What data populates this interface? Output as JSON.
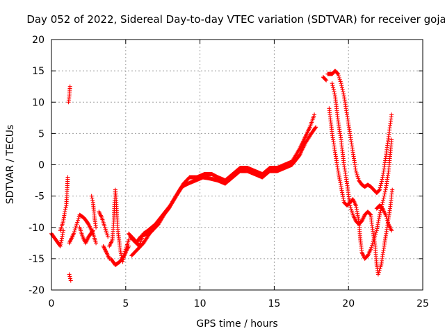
{
  "chart_data": {
    "type": "scatter",
    "title": "Day 052 of 2022, Sidereal Day-to-day VTEC variation (SDTVAR) for receiver goja",
    "xlabel": "GPS time / hours",
    "ylabel": "SDTVAR / TECUs",
    "xlim": [
      0,
      25
    ],
    "ylim": [
      -20,
      20
    ],
    "xticks": [
      "0",
      "5",
      "10",
      "15",
      "20",
      "25"
    ],
    "yticks": [
      "20",
      "15",
      "10",
      "5",
      "0",
      "-5",
      "-10",
      "-15",
      "-20"
    ],
    "grid": true,
    "marker": "+",
    "color": "#ff0000",
    "series": [
      {
        "name": "SDTVAR",
        "tracks": [
          [
            [
              0.0,
              -11
            ],
            [
              0.3,
              -12
            ],
            [
              0.6,
              -13
            ],
            [
              0.8,
              -10.5
            ]
          ],
          [
            [
              0.6,
              -10.5
            ],
            [
              0.8,
              -9
            ],
            [
              0.9,
              -7.5
            ],
            [
              1.0,
              -6.5
            ],
            [
              1.05,
              -4
            ],
            [
              1.1,
              -2
            ]
          ],
          [
            [
              1.15,
              10
            ],
            [
              1.2,
              11
            ],
            [
              1.25,
              12.5
            ]
          ],
          [
            [
              1.2,
              -17.5
            ],
            [
              1.3,
              -18.5
            ]
          ],
          [
            [
              1.2,
              -12.5
            ],
            [
              1.5,
              -11
            ],
            [
              1.7,
              -9.5
            ],
            [
              1.9,
              -8
            ],
            [
              2.2,
              -8.5
            ],
            [
              2.5,
              -9.5
            ],
            [
              2.8,
              -11
            ],
            [
              3.0,
              -12.5
            ]
          ],
          [
            [
              1.9,
              -10
            ],
            [
              2.1,
              -11.5
            ],
            [
              2.3,
              -12.5
            ],
            [
              2.5,
              -11.5
            ],
            [
              2.8,
              -10.5
            ]
          ],
          [
            [
              2.7,
              -5
            ],
            [
              2.8,
              -6
            ],
            [
              2.9,
              -8.5
            ],
            [
              3.0,
              -10
            ]
          ],
          [
            [
              3.2,
              -7.5
            ],
            [
              3.4,
              -8.5
            ],
            [
              3.6,
              -10
            ],
            [
              3.8,
              -11.5
            ]
          ],
          [
            [
              3.5,
              -13
            ],
            [
              3.7,
              -14
            ],
            [
              3.9,
              -15
            ]
          ],
          [
            [
              3.9,
              -13
            ],
            [
              4.1,
              -12
            ],
            [
              4.2,
              -9
            ],
            [
              4.25,
              -6
            ],
            [
              4.3,
              -4
            ],
            [
              4.35,
              -5
            ],
            [
              4.4,
              -8
            ],
            [
              4.5,
              -11
            ],
            [
              4.6,
              -13
            ],
            [
              4.7,
              -14.5
            ],
            [
              4.8,
              -15.5
            ],
            [
              4.9,
              -14.5
            ],
            [
              5.0,
              -13.5
            ],
            [
              5.2,
              -12
            ]
          ],
          [
            [
              4.0,
              -15
            ],
            [
              4.3,
              -16
            ],
            [
              4.6,
              -15.5
            ],
            [
              4.9,
              -14.5
            ],
            [
              5.2,
              -13
            ]
          ],
          [
            [
              5.2,
              -11
            ],
            [
              5.6,
              -12
            ],
            [
              5.9,
              -13
            ],
            [
              6.2,
              -11
            ],
            [
              6.5,
              -10.5
            ],
            [
              7.0,
              -9.5
            ],
            [
              7.5,
              -8
            ],
            [
              8.0,
              -6.5
            ],
            [
              8.5,
              -4.5
            ],
            [
              8.9,
              -3
            ],
            [
              9.3,
              -2
            ],
            [
              9.8,
              -2
            ],
            [
              10.3,
              -1.5
            ],
            [
              10.8,
              -1.5
            ],
            [
              11.2,
              -2
            ],
            [
              11.7,
              -2.5
            ],
            [
              12.2,
              -1.5
            ],
            [
              12.7,
              -0.5
            ],
            [
              13.2,
              -0.5
            ],
            [
              13.7,
              -1
            ],
            [
              14.2,
              -1.5
            ],
            [
              14.7,
              -0.5
            ],
            [
              15.2,
              -0.5
            ],
            [
              15.7,
              0
            ],
            [
              16.2,
              0.5
            ],
            [
              16.7,
              2.5
            ],
            [
              17.1,
              4.5
            ],
            [
              17.4,
              6
            ],
            [
              17.7,
              8
            ]
          ],
          [
            [
              5.3,
              -11.5
            ],
            [
              5.7,
              -12.5
            ],
            [
              6.0,
              -11.5
            ],
            [
              6.4,
              -11
            ],
            [
              6.9,
              -10
            ],
            [
              7.4,
              -8.5
            ],
            [
              7.9,
              -7
            ],
            [
              8.4,
              -5
            ],
            [
              8.8,
              -3.5
            ],
            [
              9.2,
              -3
            ],
            [
              9.7,
              -2.5
            ],
            [
              10.2,
              -2
            ],
            [
              10.7,
              -2.2
            ],
            [
              11.2,
              -2.5
            ],
            [
              11.7,
              -3
            ],
            [
              12.2,
              -2
            ],
            [
              12.7,
              -1
            ],
            [
              13.2,
              -1
            ],
            [
              13.7,
              -1.5
            ],
            [
              14.2,
              -2
            ],
            [
              14.7,
              -1
            ],
            [
              15.2,
              -1
            ],
            [
              15.7,
              -0.5
            ],
            [
              16.2,
              0
            ],
            [
              16.7,
              1.5
            ],
            [
              17.1,
              3.5
            ],
            [
              17.5,
              5
            ],
            [
              17.8,
              6
            ]
          ],
          [
            [
              5.4,
              -14.5
            ],
            [
              5.8,
              -13.5
            ],
            [
              6.2,
              -12.5
            ],
            [
              6.6,
              -11
            ],
            [
              7.2,
              -9.5
            ],
            [
              7.7,
              -7.5
            ]
          ],
          [
            [
              18.3,
              14
            ],
            [
              18.5,
              13.5
            ]
          ],
          [
            [
              18.7,
              9
            ],
            [
              18.9,
              5
            ],
            [
              19.1,
              2
            ],
            [
              19.3,
              -1
            ],
            [
              19.5,
              -3.5
            ],
            [
              19.7,
              -6
            ],
            [
              19.9,
              -6.5
            ],
            [
              20.1,
              -6
            ],
            [
              20.3,
              -5.5
            ],
            [
              20.5,
              -6.5
            ],
            [
              20.7,
              -9
            ],
            [
              20.8,
              -12
            ],
            [
              20.9,
              -14
            ],
            [
              21.1,
              -15
            ],
            [
              21.3,
              -14.5
            ],
            [
              21.5,
              -13.5
            ],
            [
              21.7,
              -12
            ],
            [
              21.9,
              -10.5
            ],
            [
              22.1,
              -8
            ],
            [
              22.3,
              -6
            ],
            [
              22.5,
              -4
            ],
            [
              22.7,
              -1
            ],
            [
              22.9,
              4
            ]
          ],
          [
            [
              18.9,
              13
            ],
            [
              19.1,
              11
            ],
            [
              19.3,
              7
            ],
            [
              19.5,
              4
            ],
            [
              19.7,
              0
            ],
            [
              19.9,
              -3
            ],
            [
              20.1,
              -6.5
            ],
            [
              20.3,
              -8
            ],
            [
              20.5,
              -9
            ],
            [
              20.7,
              -9.5
            ],
            [
              20.9,
              -9
            ],
            [
              21.1,
              -8
            ],
            [
              21.3,
              -7.5
            ],
            [
              21.5,
              -8
            ],
            [
              21.6,
              -10
            ],
            [
              21.8,
              -13
            ],
            [
              21.9,
              -16
            ],
            [
              22.0,
              -17.5
            ],
            [
              22.2,
              -16
            ],
            [
              22.4,
              -13
            ],
            [
              22.6,
              -10
            ],
            [
              22.8,
              -7
            ],
            [
              22.95,
              -4
            ]
          ],
          [
            [
              18.6,
              14.5
            ],
            [
              18.9,
              14.5
            ],
            [
              19.1,
              15
            ],
            [
              19.3,
              14.5
            ],
            [
              19.5,
              13
            ],
            [
              19.7,
              11
            ],
            [
              19.9,
              8
            ],
            [
              20.1,
              5
            ],
            [
              20.3,
              2
            ],
            [
              20.5,
              -1
            ],
            [
              20.7,
              -2.5
            ],
            [
              20.9,
              -3.2
            ],
            [
              21.1,
              -3.5
            ],
            [
              21.3,
              -3.2
            ],
            [
              21.5,
              -3.5
            ],
            [
              21.7,
              -4
            ],
            [
              21.9,
              -4.5
            ],
            [
              22.1,
              -4
            ],
            [
              22.3,
              -2
            ],
            [
              22.5,
              1
            ],
            [
              22.7,
              4.5
            ],
            [
              22.9,
              8
            ]
          ],
          [
            [
              21.9,
              -7
            ],
            [
              22.1,
              -6.5
            ],
            [
              22.3,
              -7
            ],
            [
              22.5,
              -8
            ],
            [
              22.7,
              -9.5
            ],
            [
              22.9,
              -10.5
            ]
          ]
        ]
      }
    ]
  }
}
